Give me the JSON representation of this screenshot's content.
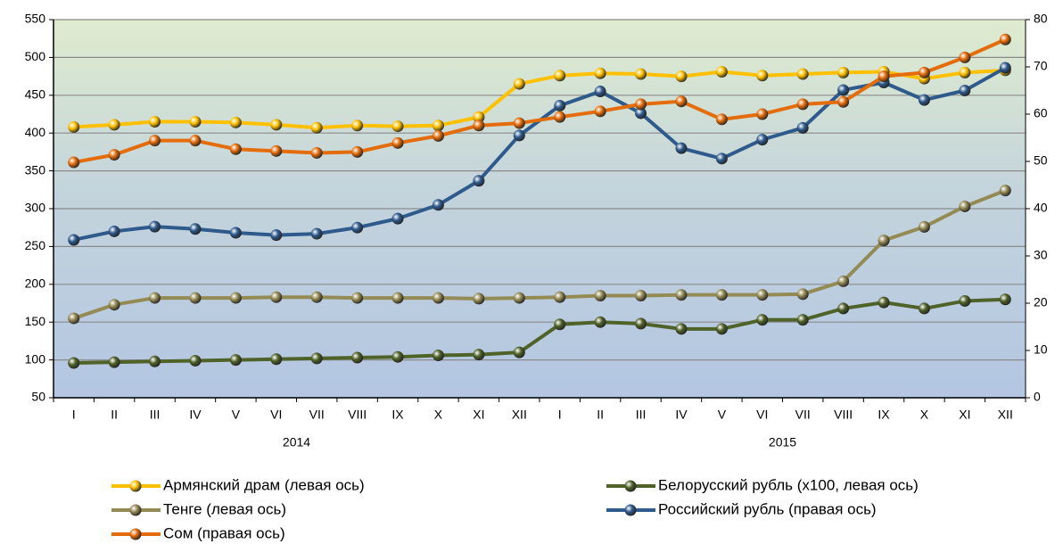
{
  "chart_data": {
    "type": "line",
    "categories": [
      "I",
      "II",
      "III",
      "IV",
      "V",
      "VI",
      "VII",
      "VIII",
      "IX",
      "X",
      "XI",
      "XII",
      "I",
      "II",
      "III",
      "IV",
      "V",
      "VI",
      "VII",
      "VIII",
      "IX",
      "X",
      "XI",
      "XII"
    ],
    "category_groups": [
      "2014",
      "2015"
    ],
    "ylim": [
      50,
      550
    ],
    "yticks": [
      50,
      100,
      150,
      200,
      250,
      300,
      350,
      400,
      450,
      500,
      550
    ],
    "y2lim": [
      0,
      80
    ],
    "y2ticks": [
      0,
      10,
      20,
      30,
      40,
      50,
      60,
      70,
      80
    ],
    "grid": true,
    "series": [
      {
        "name": "Армянский драм (левая ось)",
        "color": "#ffc000",
        "axis": "y",
        "values": [
          408,
          411,
          415,
          415,
          414,
          411,
          407,
          410,
          409,
          410,
          421,
          465,
          476,
          479,
          478,
          475,
          481,
          476,
          478,
          480,
          481,
          472,
          480,
          483
        ]
      },
      {
        "name": "Белорусский рубль (х100, левая ось)",
        "color": "#4f6228",
        "axis": "y",
        "values": [
          96,
          97,
          98,
          99,
          100,
          101,
          102,
          103,
          104,
          106,
          107,
          110,
          147,
          150,
          148,
          141,
          141,
          153,
          153,
          168,
          176,
          168,
          178,
          180
        ]
      },
      {
        "name": "Тенге (левая ось)",
        "color": "#948a54",
        "axis": "y",
        "values": [
          155,
          173,
          182,
          182,
          182,
          183,
          183,
          182,
          182,
          182,
          181,
          182,
          183,
          185,
          185,
          186,
          186,
          186,
          187,
          204,
          258,
          276,
          303,
          324
        ]
      },
      {
        "name": "Российский рубль (правая ось)",
        "color": "#2e5a8c",
        "axis": "y2",
        "values": [
          33.4,
          35.2,
          36.2,
          35.7,
          34.9,
          34.4,
          34.7,
          36.0,
          37.9,
          40.8,
          45.9,
          55.5,
          61.8,
          64.8,
          60.2,
          52.8,
          50.6,
          54.6,
          57.1,
          65.1,
          66.7,
          63.0,
          65.0,
          69.8
        ]
      },
      {
        "name": "Сом (правая ось)",
        "color": "#e46c0a",
        "axis": "y2",
        "values": [
          49.8,
          51.4,
          54.4,
          54.4,
          52.6,
          52.2,
          51.8,
          52.0,
          53.9,
          55.4,
          57.6,
          58.1,
          59.4,
          60.6,
          62.1,
          62.7,
          58.9,
          60.0,
          62.1,
          62.6,
          68.0,
          68.8,
          72.0,
          75.8
        ]
      }
    ]
  }
}
